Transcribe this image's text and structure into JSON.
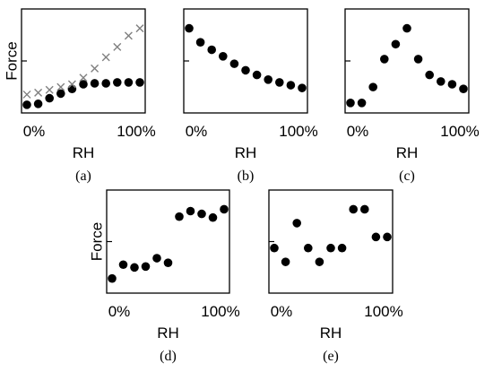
{
  "chart_data": [
    {
      "type": "scatter",
      "panel_label": "(a)",
      "xlabel": "RH",
      "ylabel": "Force",
      "xticks": [
        "0%",
        "100%"
      ],
      "xlim": [
        0,
        100
      ],
      "ylim": [
        0,
        100
      ],
      "series": [
        {
          "marker": "circle",
          "color": "#000000",
          "x": [
            0,
            10,
            20,
            30,
            40,
            50,
            60,
            70,
            80,
            90,
            100
          ],
          "y": [
            3,
            4,
            10,
            15,
            20,
            25,
            26,
            26,
            27,
            27,
            27
          ]
        },
        {
          "marker": "cross",
          "color": "#808080",
          "x": [
            0,
            10,
            20,
            30,
            40,
            50,
            60,
            70,
            80,
            90,
            100
          ],
          "y": [
            14,
            16,
            19,
            22,
            25,
            32,
            42,
            54,
            65,
            77,
            85
          ]
        }
      ]
    },
    {
      "type": "scatter",
      "panel_label": "(b)",
      "xlabel": "RH",
      "xticks": [
        "0%",
        "100%"
      ],
      "xlim": [
        0,
        100
      ],
      "ylim": [
        0,
        100
      ],
      "series": [
        {
          "marker": "circle",
          "color": "#000000",
          "x": [
            0,
            10,
            20,
            30,
            40,
            50,
            60,
            70,
            80,
            90,
            100
          ],
          "y": [
            85,
            70,
            62,
            55,
            47,
            40,
            35,
            30,
            27,
            24,
            21
          ]
        }
      ]
    },
    {
      "type": "scatter",
      "panel_label": "(c)",
      "xlabel": "RH",
      "xticks": [
        "0%",
        "100%"
      ],
      "xlim": [
        0,
        100
      ],
      "ylim": [
        0,
        100
      ],
      "series": [
        {
          "marker": "circle",
          "color": "#000000",
          "x": [
            0,
            10,
            20,
            30,
            40,
            50,
            60,
            70,
            80,
            90,
            100
          ],
          "y": [
            5,
            5,
            22,
            52,
            68,
            85,
            52,
            35,
            28,
            25,
            20
          ]
        }
      ]
    },
    {
      "type": "scatter",
      "panel_label": "(d)",
      "xlabel": "RH",
      "ylabel": "Force",
      "xticks": [
        "0%",
        "100%"
      ],
      "xlim": [
        0,
        100
      ],
      "ylim": [
        0,
        100
      ],
      "series": [
        {
          "marker": "circle",
          "color": "#000000",
          "x": [
            0,
            10,
            20,
            30,
            40,
            50,
            60,
            70,
            80,
            90,
            100
          ],
          "y": [
            10,
            25,
            22,
            23,
            32,
            27,
            77,
            83,
            80,
            76,
            85
          ]
        }
      ]
    },
    {
      "type": "scatter",
      "panel_label": "(e)",
      "xlabel": "RH",
      "xticks": [
        "0%",
        "100%"
      ],
      "xlim": [
        0,
        100
      ],
      "ylim": [
        0,
        100
      ],
      "series": [
        {
          "marker": "circle",
          "color": "#000000",
          "x": [
            0,
            10,
            20,
            30,
            40,
            50,
            60,
            70,
            80,
            90,
            100
          ],
          "y": [
            43,
            28,
            70,
            43,
            28,
            43,
            43,
            85,
            85,
            55,
            55
          ]
        }
      ]
    }
  ]
}
